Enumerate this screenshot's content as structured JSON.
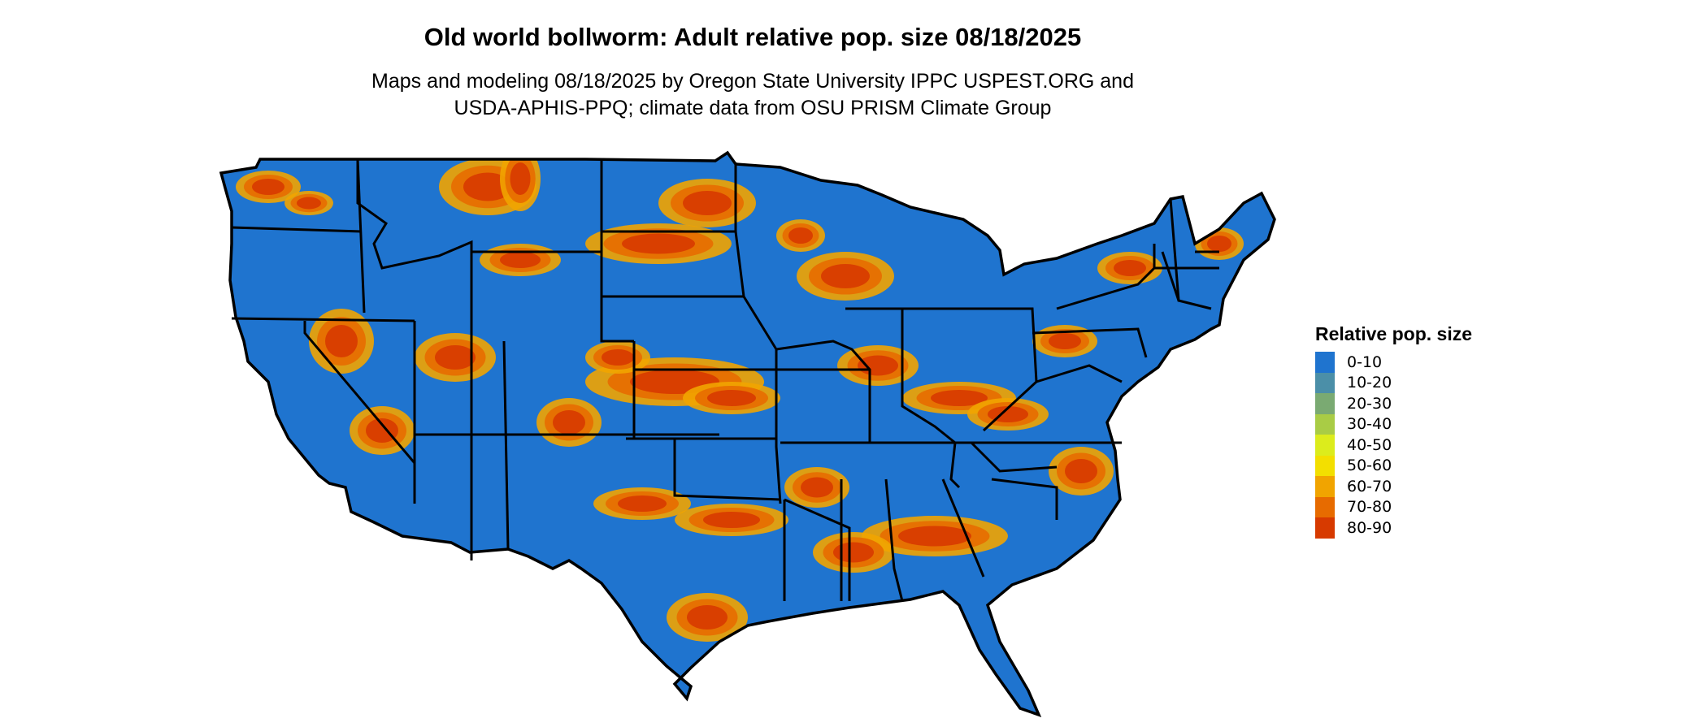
{
  "title": "Old world bollworm: Adult relative pop. size 08/18/2025",
  "subtitle_lines": [
    "Maps and modeling 08/18/2025 by Oregon State University IPPC USPEST.ORG and",
    "USDA-APHIS-PPQ; climate data from OSU PRISM Climate Group"
  ],
  "legend": {
    "title": "Relative pop. size",
    "items": [
      {
        "label": "0-10",
        "color": "#1f74cf"
      },
      {
        "label": "10-20",
        "color": "#4b8fa8"
      },
      {
        "label": "20-30",
        "color": "#7aaa72"
      },
      {
        "label": "30-40",
        "color": "#a9cc45"
      },
      {
        "label": "40-50",
        "color": "#dcec1c"
      },
      {
        "label": "50-60",
        "color": "#f3df00"
      },
      {
        "label": "60-70",
        "color": "#f1a400"
      },
      {
        "label": "70-80",
        "color": "#e76b00"
      },
      {
        "label": "80-90",
        "color": "#d73a00"
      }
    ]
  },
  "map": {
    "base_color": "#1f74cf",
    "border_color": "#000000"
  }
}
